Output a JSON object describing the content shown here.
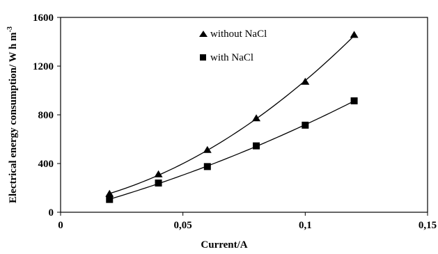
{
  "chart_data": {
    "type": "scatter",
    "title": "",
    "xlabel": "Current/A",
    "ylabel_main": "Electrical energy consumption/ W h m",
    "ylabel_sup": "-3",
    "xlim": [
      0,
      0.15
    ],
    "ylim": [
      0,
      1600
    ],
    "x_ticks": [
      {
        "value": 0,
        "label": "0"
      },
      {
        "value": 0.05,
        "label": "0,05"
      },
      {
        "value": 0.1,
        "label": "0,1"
      },
      {
        "value": 0.15,
        "label": "0,15"
      }
    ],
    "y_ticks": [
      {
        "value": 0,
        "label": "0"
      },
      {
        "value": 400,
        "label": "400"
      },
      {
        "value": 800,
        "label": "800"
      },
      {
        "value": 1200,
        "label": "1200"
      },
      {
        "value": 1600,
        "label": "1600"
      }
    ],
    "grid": false,
    "legend_position": "top-center",
    "series": [
      {
        "name": "without NaCl",
        "marker": "triangle",
        "x": [
          0.02,
          0.04,
          0.06,
          0.08,
          0.1,
          0.12
        ],
        "y": [
          150,
          310,
          510,
          770,
          1070,
          1455
        ],
        "trendline": "smooth"
      },
      {
        "name": "with NaCl",
        "marker": "square",
        "x": [
          0.02,
          0.04,
          0.06,
          0.08,
          0.1,
          0.12
        ],
        "y": [
          105,
          240,
          375,
          545,
          715,
          915
        ],
        "trendline": "smooth"
      }
    ],
    "colors": {
      "marker": "#000000",
      "line": "#000000",
      "axis": "#000000"
    }
  }
}
